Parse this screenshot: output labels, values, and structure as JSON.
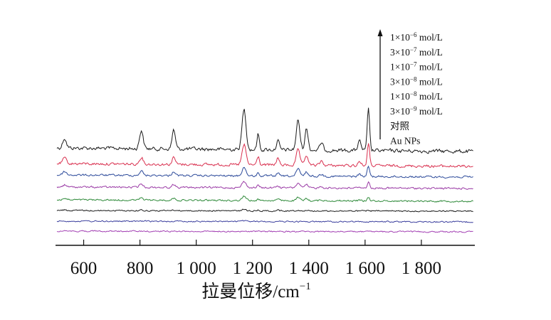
{
  "chart_data": {
    "type": "line",
    "title": "",
    "xlabel": "拉曼位移/cm",
    "xlabel_sup": "−1",
    "ylabel": "",
    "xlim": [
      500,
      1990
    ],
    "xticks": [
      {
        "value": 600,
        "label": "600"
      },
      {
        "value": 800,
        "label": "800"
      },
      {
        "value": 1000,
        "label": "1 000"
      },
      {
        "value": 1200,
        "label": "1 200"
      },
      {
        "value": 1400,
        "label": "1 400"
      },
      {
        "value": 1600,
        "label": "1 600"
      },
      {
        "value": 1800,
        "label": "1 800"
      }
    ],
    "grid": false,
    "legend_position": "top-right",
    "legend_arrow": true,
    "peak_positions": [
      532,
      805,
      920,
      1170,
      1220,
      1290,
      1362,
      1392,
      1445,
      1580,
      1612
    ],
    "series": [
      {
        "name": "1×10⁻⁶ mol/L",
        "name_base": "1×10",
        "name_exp": "−6",
        "name_unit": " mol/L",
        "color": "#1a1a1a",
        "peak_heights": [
          14,
          26,
          27,
          57,
          22,
          13,
          42,
          30,
          10,
          13,
          58
        ]
      },
      {
        "name": "3×10⁻⁷ mol/L",
        "name_base": "3×10",
        "name_exp": "−7",
        "name_unit": " mol/L",
        "color": "#d9304f",
        "peak_heights": [
          8,
          10,
          10,
          28,
          12,
          10,
          22,
          14,
          6,
          6,
          30
        ]
      },
      {
        "name": "1×10⁻⁷ mol/L",
        "name_base": "1×10",
        "name_exp": "−7",
        "name_unit": " mol/L",
        "color": "#2c4a9a",
        "peak_heights": [
          5,
          6,
          6,
          12,
          4,
          4,
          10,
          6,
          3,
          3,
          14
        ]
      },
      {
        "name": "3×10⁻⁸ mol/L",
        "name_base": "3×10",
        "name_exp": "−8",
        "name_unit": " mol/L",
        "color": "#9a3aa5",
        "peak_heights": [
          3,
          5,
          4,
          9,
          3,
          3,
          7,
          4,
          2,
          2,
          8
        ]
      },
      {
        "name": "1×10⁻⁸ mol/L",
        "name_base": "1×10",
        "name_exp": "−8",
        "name_unit": " mol/L",
        "color": "#2f8a3a",
        "peak_heights": [
          2,
          3,
          3,
          6,
          2,
          2,
          4,
          3,
          1,
          1,
          5
        ]
      },
      {
        "name": "3×10⁻⁹ mol/L",
        "name_base": "3×10",
        "name_exp": "−9",
        "name_unit": " mol/L",
        "color": "#1a1a1a",
        "peak_heights": [
          1,
          1,
          1,
          2,
          1,
          1,
          1,
          1,
          0,
          0,
          1
        ]
      },
      {
        "name": "对照",
        "name_base": "对照",
        "name_exp": "",
        "name_unit": "",
        "color": "#3b3f9e",
        "peak_heights": [
          0,
          0,
          0,
          1,
          0,
          0,
          0,
          0,
          0,
          0,
          0
        ]
      },
      {
        "name": "Au NPs",
        "name_base": "Au NPs",
        "name_exp": "",
        "name_unit": "",
        "color": "#a23fb3",
        "peak_heights": [
          0,
          0,
          0,
          0,
          0,
          0,
          0,
          0,
          0,
          0,
          0
        ]
      }
    ]
  }
}
